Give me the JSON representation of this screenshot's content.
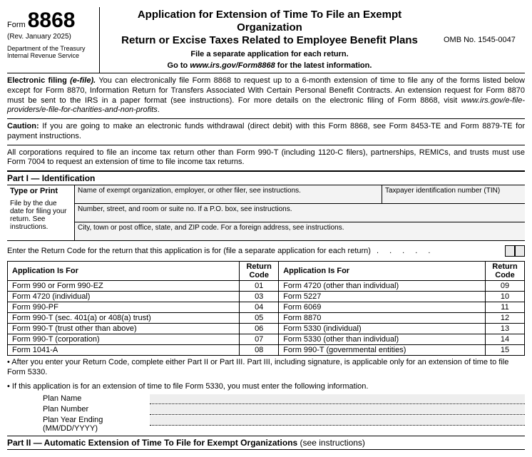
{
  "header": {
    "form_word": "Form",
    "form_number": "8868",
    "revision": "(Rev. January 2025)",
    "dept1": "Department of the Treasury",
    "dept2": "Internal Revenue Service",
    "title_line1": "Application for Extension of Time To File an Exempt Organization",
    "title_line2": "Return or Excise Taxes Related to Employee Benefit Plans",
    "sub1": "File a separate application for each return.",
    "sub2_a": "Go to ",
    "sub2_b": "www.irs.gov/Form8868",
    "sub2_c": " for the latest information.",
    "omb": "OMB No. 1545-0047"
  },
  "paragraphs": {
    "efile_bold": "Electronic filing ",
    "efile_ital": "(e-file).",
    "efile_body": " You can electronically file Form 8868 to request up to a 6-month extension of time to file any of the forms listed below except for Form 8870, Information Return for Transfers Associated With Certain Personal Benefit Contracts. An extension request for Form 8870 must be sent to the IRS in a paper format (see instructions). For more details on the electronic filing of Form 8868, visit ",
    "efile_url": "www.irs.gov/e-file-providers/e-file-for-charities-and-non-profits",
    "caution_bold": "Caution:",
    "caution_body": " If you are going to make an electronic funds withdrawal (direct debit) with this Form 8868, see Form 8453-TE and Form 8879-TE for payment instructions.",
    "corp_body": "All corporations required to file an income tax return other than Form 990-T (including 1120-C filers), partnerships, REMICs, and trusts must use Form 7004 to request an extension of time to file income tax returns."
  },
  "part1": {
    "label": "Part I",
    "title": "Identification",
    "type_print": "Type or Print",
    "file_by": "File by the due date for filing your return. See instructions.",
    "name_label": "Name of exempt organization, employer, or other filer, see instructions.",
    "tin_label": "Taxpayer identification number (TIN)",
    "addr1": "Number, street, and room or suite no. If a P.O. box, see instructions.",
    "addr2": "City, town or post office, state, and ZIP code. For a foreign address, see instructions."
  },
  "return_code": {
    "line": "Enter the Return Code for the return that this application is for (file a separate application for each return)",
    "dots": ".   .   .   .   .",
    "header_app": "Application Is For",
    "header_code": "Return Code",
    "rows_left": [
      {
        "app": "Form 990 or Form 990-EZ",
        "code": "01"
      },
      {
        "app": "Form 4720 (individual)",
        "code": "03"
      },
      {
        "app": "Form 990-PF",
        "code": "04"
      },
      {
        "app": "Form 990-T (sec. 401(a) or 408(a) trust)",
        "code": "05"
      },
      {
        "app": "Form 990-T (trust other than above)",
        "code": "06"
      },
      {
        "app": "Form 990-T (corporation)",
        "code": "07"
      },
      {
        "app": "Form 1041-A",
        "code": "08"
      }
    ],
    "rows_right": [
      {
        "app": "Form 4720 (other than individual)",
        "code": "09"
      },
      {
        "app": "Form 5227",
        "code": "10"
      },
      {
        "app": "Form 6069",
        "code": "11"
      },
      {
        "app": "Form 8870",
        "code": "12"
      },
      {
        "app": "Form 5330 (individual)",
        "code": "13"
      },
      {
        "app": "Form 5330 (other than individual)",
        "code": "14"
      },
      {
        "app": "Form 990-T (governmental entities)",
        "code": "15"
      }
    ]
  },
  "bullets": {
    "b1": "• After you enter your Return Code, complete either Part II or Part III. Part III, including signature, is applicable only for an extension of time to file Form 5330.",
    "b2": "• If this application is for an extension of time to file Form 5330, you must enter the following information.",
    "plan_name": "Plan Name",
    "plan_number": "Plan Number",
    "plan_year": "Plan Year Ending (MM/DD/YYYY)"
  },
  "part2": {
    "label": "Part II",
    "title": "Automatic Extension of Time To File for Exempt Organizations",
    "see": "(see instructions)"
  }
}
